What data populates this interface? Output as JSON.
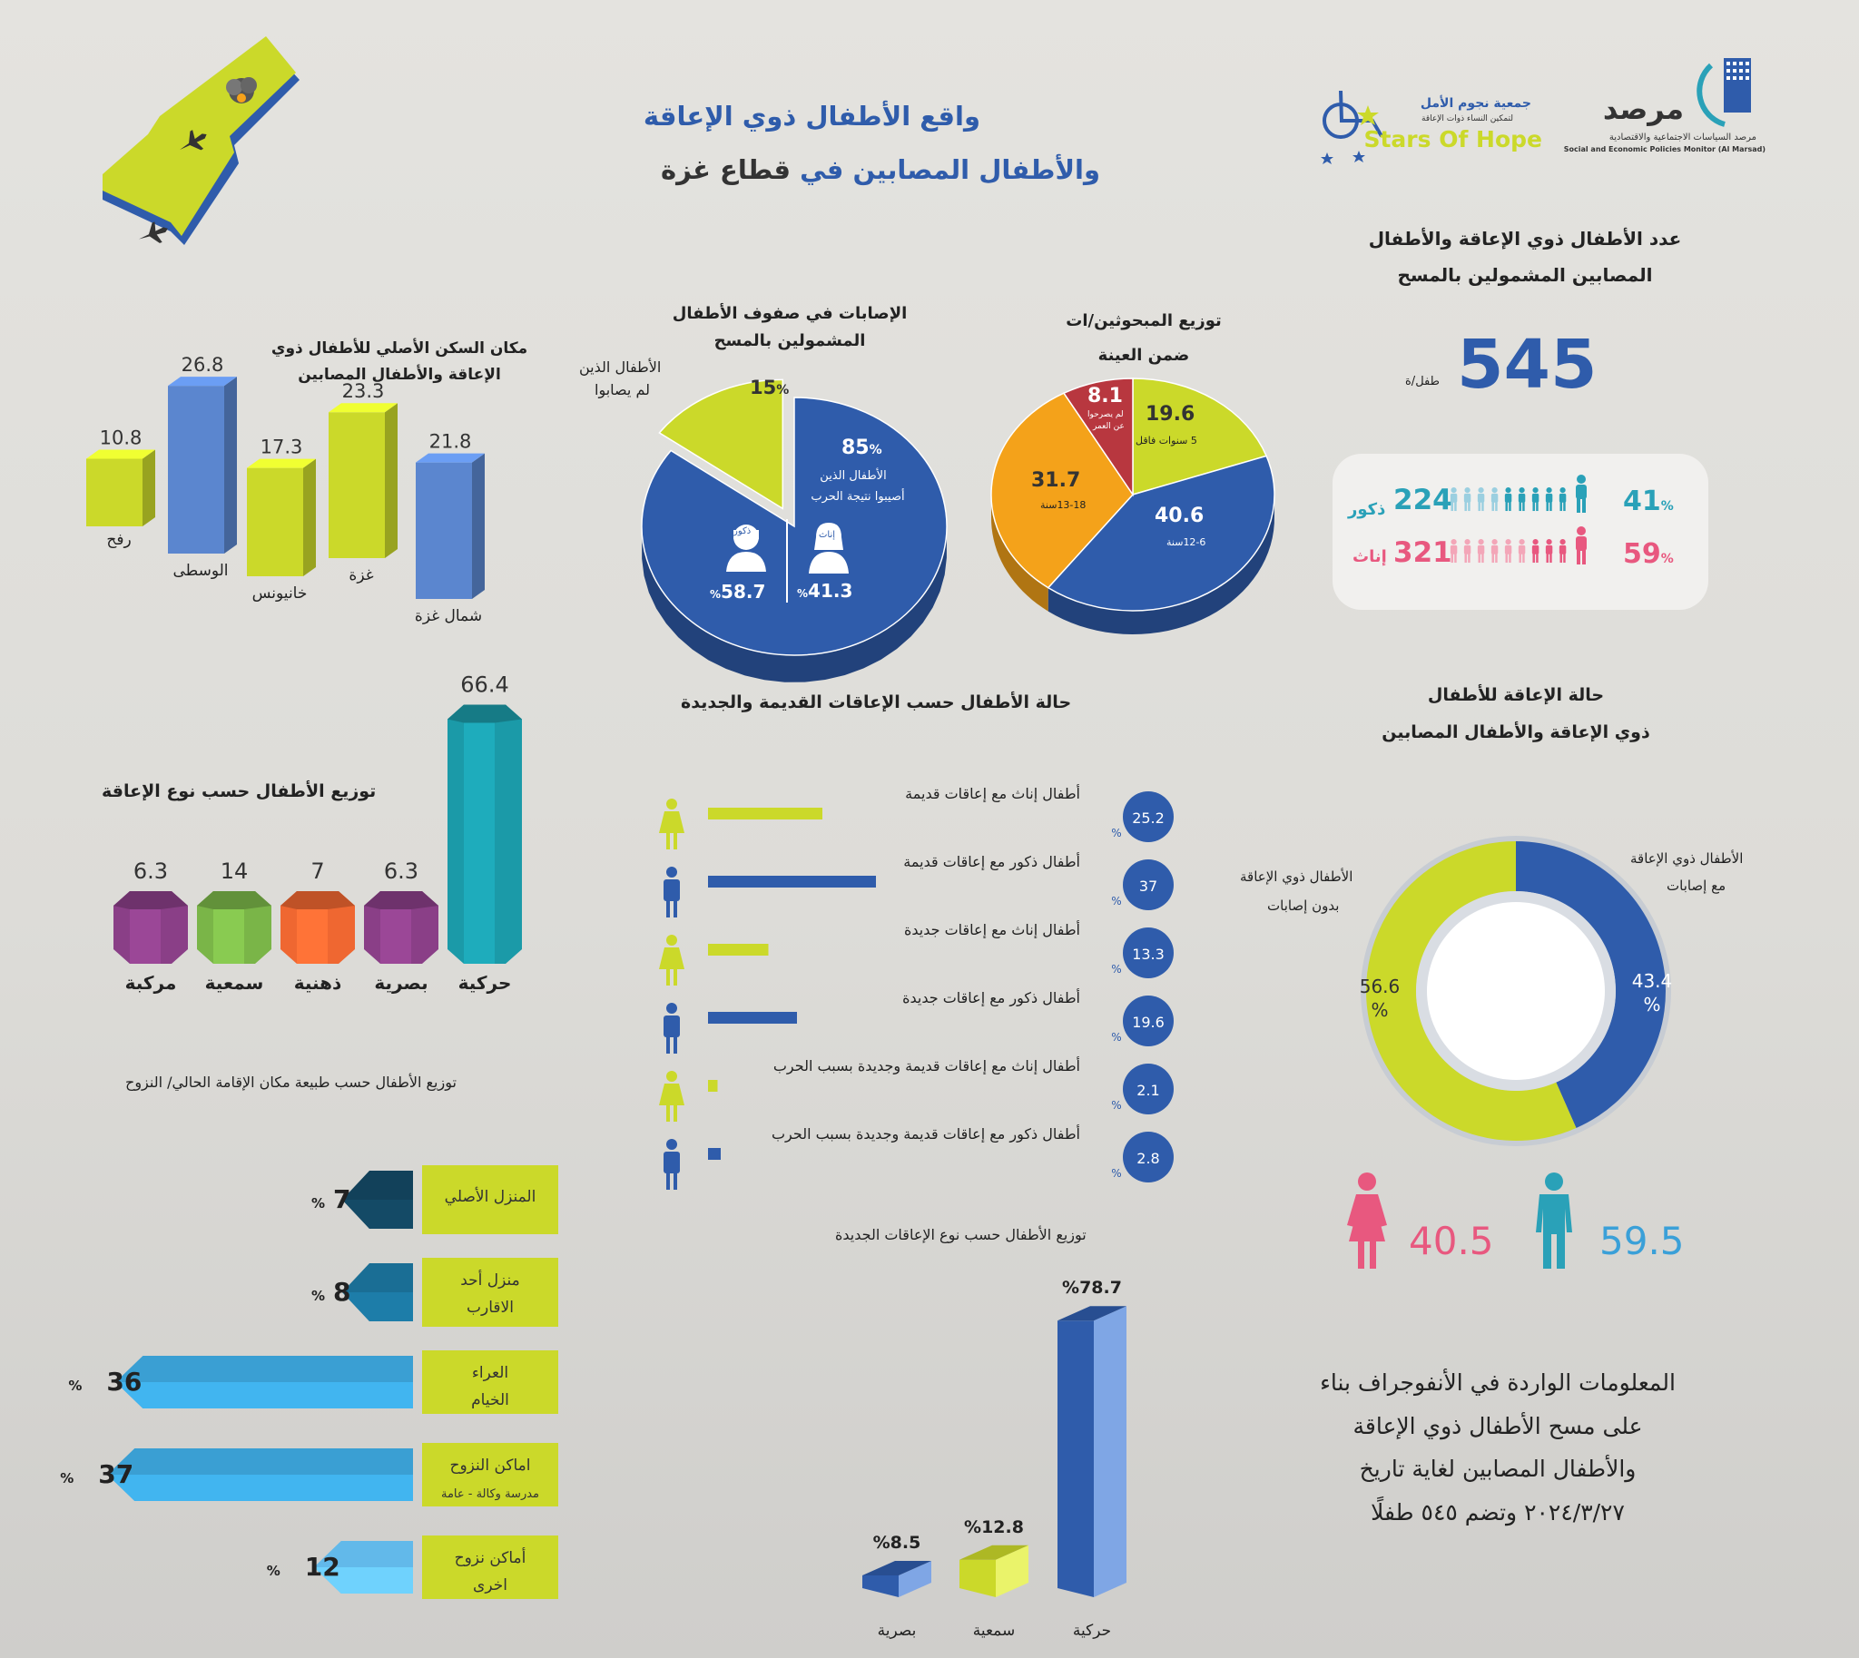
{
  "title": {
    "line1": "واقع الأطفال ذوي الإعاقة",
    "line2_a": "والأطفال المصابين",
    "line2_b": "في",
    "line2_c": "قطاع غزة"
  },
  "logos": {
    "marsad_ar": "مرصد",
    "marsad_sub_ar": "مرصد السياسات الاجتماعية والاقتصادية",
    "marsad_sub_en": "Social and Economic Policies Monitor (Al Marsad)",
    "stars_ar": "جمعية نجوم الأمل",
    "stars_sub_ar": "لتمكين النساء ذوات الإعاقة",
    "stars_en": "Stars Of Hope"
  },
  "total": {
    "title_l1": "عدد الأطفال ذوي الإعاقة والأطفال",
    "title_l2": "المصابين المشمولين بالمسح",
    "value": "545",
    "unit": "طفل/ة"
  },
  "gender_counts": {
    "boys_pct": "41",
    "boys_count": "224",
    "boys_label": "ذكور",
    "girls_pct": "59",
    "girls_count": "321",
    "girls_label": "إناث",
    "pct_sign": "%"
  },
  "colors": {
    "blue": "#2f5cab",
    "lime": "#cbd92a",
    "red": "#b8373f",
    "orange": "#f4a21a",
    "pink": "#e8587f",
    "teal": "#2aa1b8"
  },
  "charts": {
    "age": {
      "title_l1": "توزيع المبحوثين/ات",
      "title_l2": "ضمن العينة",
      "chart_data": {
        "type": "pie",
        "series": [
          {
            "label": "5 سنوات فاقل",
            "value": 19.6
          },
          {
            "label": "12-6سنة",
            "value": 40.6
          },
          {
            "label": "13-18سنة",
            "value": 31.7
          },
          {
            "label": "لم يصرحوا عن العمر",
            "value": 8.1
          }
        ]
      },
      "labels": {
        "s1": "19.6",
        "s1b": "5 سنوات فاقل",
        "s2": "40.6",
        "s2b": "12-6سنة",
        "s3": "31.7",
        "s3b": "13-18سنة",
        "s4": "8.1",
        "s4b": "لم يصرحوا",
        "s4c": "عن العمر"
      }
    },
    "injury": {
      "title_l1": "الإصابات في صفوف الأطفال",
      "title_l2": "المشمولين بالمسح",
      "chart_data": {
        "type": "pie",
        "series": [
          {
            "label": "الأطفال الذين أصيبوا نتيجة الحرب",
            "value": 85
          },
          {
            "label": "الأطفال الذين لم يصابوا",
            "value": 15
          }
        ]
      },
      "labels": {
        "inj_pct": "85",
        "inj_l1": "الأطفال الذين",
        "inj_l2": "أصيبوا نتيجة الحرب",
        "non_pct": "15",
        "non_l1": "الأطفال الذين",
        "non_l2": "لم يصابوا",
        "pct": "%"
      },
      "gender": {
        "female_label": "إناث",
        "female_pct": "41.3",
        "male_label": "ذكور",
        "male_pct": "58.7"
      }
    },
    "residence": {
      "title_l1": "مكان السكن الأصلي للأطفال ذوي",
      "title_l2": "الإعاقة والأطفال المصابين",
      "chart_data": {
        "type": "bar",
        "categories": [
          "رفح",
          "الوسطى",
          "خانيونس",
          "غزة",
          "شمال غزة"
        ],
        "values": [
          10.8,
          26.8,
          17.3,
          23.3,
          21.8
        ]
      }
    },
    "disability_type": {
      "title": "توزيع الأطفال حسب نوع الإعاقة",
      "chart_data": {
        "type": "bar",
        "categories": [
          "مركبة",
          "سمعية",
          "ذهنية",
          "بصرية",
          "حركية"
        ],
        "values": [
          6.3,
          14,
          7,
          6.3,
          66.4
        ]
      }
    },
    "old_new": {
      "title": "حالة الأطفال حسب الإعاقات القديمة والجديدة",
      "chart_data": {
        "type": "bar",
        "categories": [
          "أطفال إناث مع إعاقات قديمة",
          "أطفال ذكور مع إعاقات قديمة",
          "أطفال إناث مع إعاقات جديدة",
          "أطفال ذكور مع إعاقات جديدة",
          "أطفال إناث مع إعاقات قديمة وجديدة بسبب الحرب",
          "أطفال ذكور مع إعاقات قديمة وجديدة بسبب الحرب"
        ],
        "values": [
          25.2,
          37,
          13.3,
          19.6,
          2.1,
          2.8
        ]
      },
      "pct": "%"
    },
    "status": {
      "title_l1": "حالة الإعاقة للأطفال",
      "title_l2": "ذوي الإعاقة والأطفال المصابين",
      "chart_data": {
        "type": "pie",
        "series": [
          {
            "label": "الأطفال ذوي الإعاقة مع إصابات",
            "value": 43.4
          },
          {
            "label": "الأطفال ذوي الإعاقة بدون إصابات",
            "value": 56.6
          }
        ]
      },
      "labels": {
        "with_l1": "الأطفال ذوي الإعاقة",
        "with_l2": "مع إصابات",
        "without_l1": "الأطفال ذوي الإعاقة",
        "without_l2": "بدون إصابات",
        "with_val": "43.4",
        "without_val": "56.6",
        "pct": "%"
      },
      "gender": {
        "female": "40.5",
        "male": "59.5"
      }
    },
    "residence_now": {
      "title": "توزيع الأطفال حسب طبيعة مكان الإقامة الحالي/ النزوح",
      "chart_data": {
        "type": "bar",
        "categories": [
          "المنزل الأصلي",
          "منزل أحد الاقارب",
          "العراء الخيام",
          "اماكن النزوح مدرسة وكالة - عامة",
          "أماكن نزوح اخرى"
        ],
        "values": [
          7,
          8,
          36,
          37,
          12
        ]
      },
      "labels": [
        {
          "l1": "المنزل الأصلي",
          "l2": ""
        },
        {
          "l1": "منزل أحد",
          "l2": "الاقارب"
        },
        {
          "l1": "العراء",
          "l2": "الخيام"
        },
        {
          "l1": "اماكن النزوح",
          "l2": "مدرسة وكالة - عامة"
        },
        {
          "l1": "أماكن نزوح",
          "l2": "اخرى"
        }
      ],
      "pct": "%"
    },
    "new_type": {
      "title": "توزيع الأطفال حسب نوع الإعاقات الجديدة",
      "chart_data": {
        "type": "bar",
        "categories": [
          "بصرية",
          "سمعية",
          "حركية"
        ],
        "values": [
          8.5,
          12.8,
          78.7
        ]
      },
      "pct": "%"
    }
  },
  "note": {
    "l1": "المعلومات الواردة في الأنفوجراف بناء",
    "l2": "على مسح الأطفال ذوي الإعاقة",
    "l3": "والأطفال المصابين لغاية تاريخ",
    "l4": "٢٠٢٤/٣/٢٧ وتضم ٥٤٥ طفلًا"
  }
}
